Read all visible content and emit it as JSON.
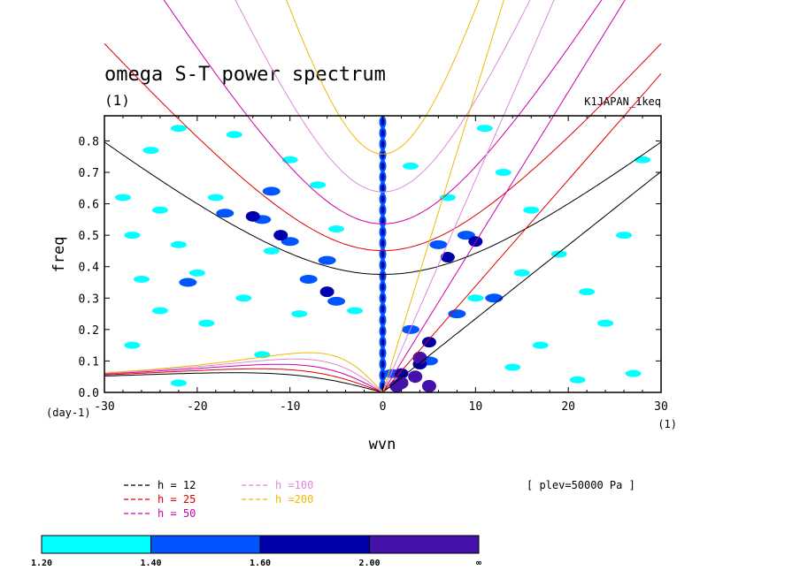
{
  "chart_data": {
    "type": "contour",
    "title": "omega S-T power spectrum",
    "subtitle": "(1)",
    "run_label": "K1JAPAN_1keq",
    "xlabel": "wvn",
    "ylabel": "freq",
    "x_unit_label": "(1)",
    "y_unit_label": "(day-1)",
    "xlim": [
      -30,
      30
    ],
    "ylim": [
      0,
      0.88
    ],
    "xticks": [
      -30,
      -20,
      -10,
      0,
      10,
      20,
      30
    ],
    "xtick_labels": [
      "-30",
      "-20",
      "-10",
      "0",
      "10",
      "20",
      "30"
    ],
    "yticks": [
      0,
      0.1,
      0.2,
      0.3,
      0.4,
      0.5,
      0.6,
      0.7,
      0.8
    ],
    "ytick_labels": [
      "0.0",
      "0.1",
      "0.2",
      "0.3",
      "0.4",
      "0.5",
      "0.6",
      "0.7",
      "0.8"
    ],
    "plev_label": "[ plev=50000 Pa ]",
    "dispersion_curves": [
      {
        "name": "h = 12",
        "h": 12,
        "color": "#000000"
      },
      {
        "name": "h = 25",
        "h": 25,
        "color": "#dd0000"
      },
      {
        "name": "h = 50",
        "h": 50,
        "color": "#cc00aa"
      },
      {
        "name": "h =100",
        "h": 100,
        "color": "#dd88dd"
      },
      {
        "name": "h =200",
        "h": 200,
        "color": "#eebb00"
      }
    ],
    "colorbar": {
      "levels": [
        "1.20",
        "1.40",
        "1.60",
        "2.00",
        "∞"
      ],
      "colors": [
        "#00ffff",
        "#0055ff",
        "#0000aa",
        "#4411aa"
      ]
    },
    "features": [
      {
        "level": 0,
        "x": -25,
        "y": 0.77
      },
      {
        "level": 0,
        "x": -22,
        "y": 0.84
      },
      {
        "level": 0,
        "x": -16,
        "y": 0.82
      },
      {
        "level": 0,
        "x": -28,
        "y": 0.62
      },
      {
        "level": 0,
        "x": -24,
        "y": 0.58
      },
      {
        "level": 0,
        "x": -18,
        "y": 0.62
      },
      {
        "level": 0,
        "x": -27,
        "y": 0.5
      },
      {
        "level": 0,
        "x": -22,
        "y": 0.47
      },
      {
        "level": 0,
        "x": -26,
        "y": 0.36
      },
      {
        "level": 0,
        "x": -20,
        "y": 0.38
      },
      {
        "level": 0,
        "x": -24,
        "y": 0.26
      },
      {
        "level": 0,
        "x": -27,
        "y": 0.15
      },
      {
        "level": 0,
        "x": -19,
        "y": 0.22
      },
      {
        "level": 0,
        "x": -15,
        "y": 0.3
      },
      {
        "level": 0,
        "x": -12,
        "y": 0.45
      },
      {
        "level": 0,
        "x": -10,
        "y": 0.74
      },
      {
        "level": 0,
        "x": -7,
        "y": 0.66
      },
      {
        "level": 0,
        "x": -5,
        "y": 0.52
      },
      {
        "level": 0,
        "x": -3,
        "y": 0.26
      },
      {
        "level": 0,
        "x": -9,
        "y": 0.25
      },
      {
        "level": 0,
        "x": -13,
        "y": 0.12
      },
      {
        "level": 0,
        "x": -22,
        "y": 0.03
      },
      {
        "level": 0,
        "x": 3,
        "y": 0.72
      },
      {
        "level": 0,
        "x": 7,
        "y": 0.62
      },
      {
        "level": 0,
        "x": 11,
        "y": 0.84
      },
      {
        "level": 0,
        "x": 13,
        "y": 0.7
      },
      {
        "level": 0,
        "x": 16,
        "y": 0.58
      },
      {
        "level": 0,
        "x": 19,
        "y": 0.44
      },
      {
        "level": 0,
        "x": 22,
        "y": 0.32
      },
      {
        "level": 0,
        "x": 26,
        "y": 0.5
      },
      {
        "level": 0,
        "x": 28,
        "y": 0.74
      },
      {
        "level": 0,
        "x": 24,
        "y": 0.22
      },
      {
        "level": 0,
        "x": 17,
        "y": 0.15
      },
      {
        "level": 0,
        "x": 14,
        "y": 0.08
      },
      {
        "level": 0,
        "x": 21,
        "y": 0.04
      },
      {
        "level": 0,
        "x": 27,
        "y": 0.06
      },
      {
        "level": 0,
        "x": 10,
        "y": 0.3
      },
      {
        "level": 0,
        "x": 15,
        "y": 0.38
      },
      {
        "level": 1,
        "x": -17,
        "y": 0.57
      },
      {
        "level": 1,
        "x": -13,
        "y": 0.55
      },
      {
        "level": 1,
        "x": -12,
        "y": 0.64
      },
      {
        "level": 1,
        "x": -10,
        "y": 0.48
      },
      {
        "level": 1,
        "x": -6,
        "y": 0.42
      },
      {
        "level": 1,
        "x": -5,
        "y": 0.29
      },
      {
        "level": 1,
        "x": -8,
        "y": 0.36
      },
      {
        "level": 1,
        "x": -21,
        "y": 0.35
      },
      {
        "level": 1,
        "x": 6,
        "y": 0.47
      },
      {
        "level": 1,
        "x": 9,
        "y": 0.5
      },
      {
        "level": 1,
        "x": 12,
        "y": 0.3
      },
      {
        "level": 1,
        "x": 3,
        "y": 0.2
      },
      {
        "level": 1,
        "x": 5,
        "y": 0.1
      },
      {
        "level": 1,
        "x": 8,
        "y": 0.25
      },
      {
        "level": 1,
        "x": 1,
        "y": 0.06
      },
      {
        "level": 2,
        "x": -14,
        "y": 0.56
      },
      {
        "level": 2,
        "x": -11,
        "y": 0.5
      },
      {
        "level": 2,
        "x": -6,
        "y": 0.32
      },
      {
        "level": 2,
        "x": 7,
        "y": 0.43
      },
      {
        "level": 2,
        "x": 10,
        "y": 0.48
      },
      {
        "level": 2,
        "x": 5,
        "y": 0.16
      },
      {
        "level": 2,
        "x": 2,
        "y": 0.06
      },
      {
        "level": 2,
        "x": 4,
        "y": 0.09
      },
      {
        "level": 3,
        "x": 2,
        "y": 0.03
      },
      {
        "level": 3,
        "x": 3.5,
        "y": 0.05
      },
      {
        "level": 3,
        "x": 4,
        "y": 0.11
      },
      {
        "level": 3,
        "x": 5,
        "y": 0.02
      },
      {
        "level": 3,
        "x": 1.5,
        "y": 0.02
      }
    ]
  }
}
